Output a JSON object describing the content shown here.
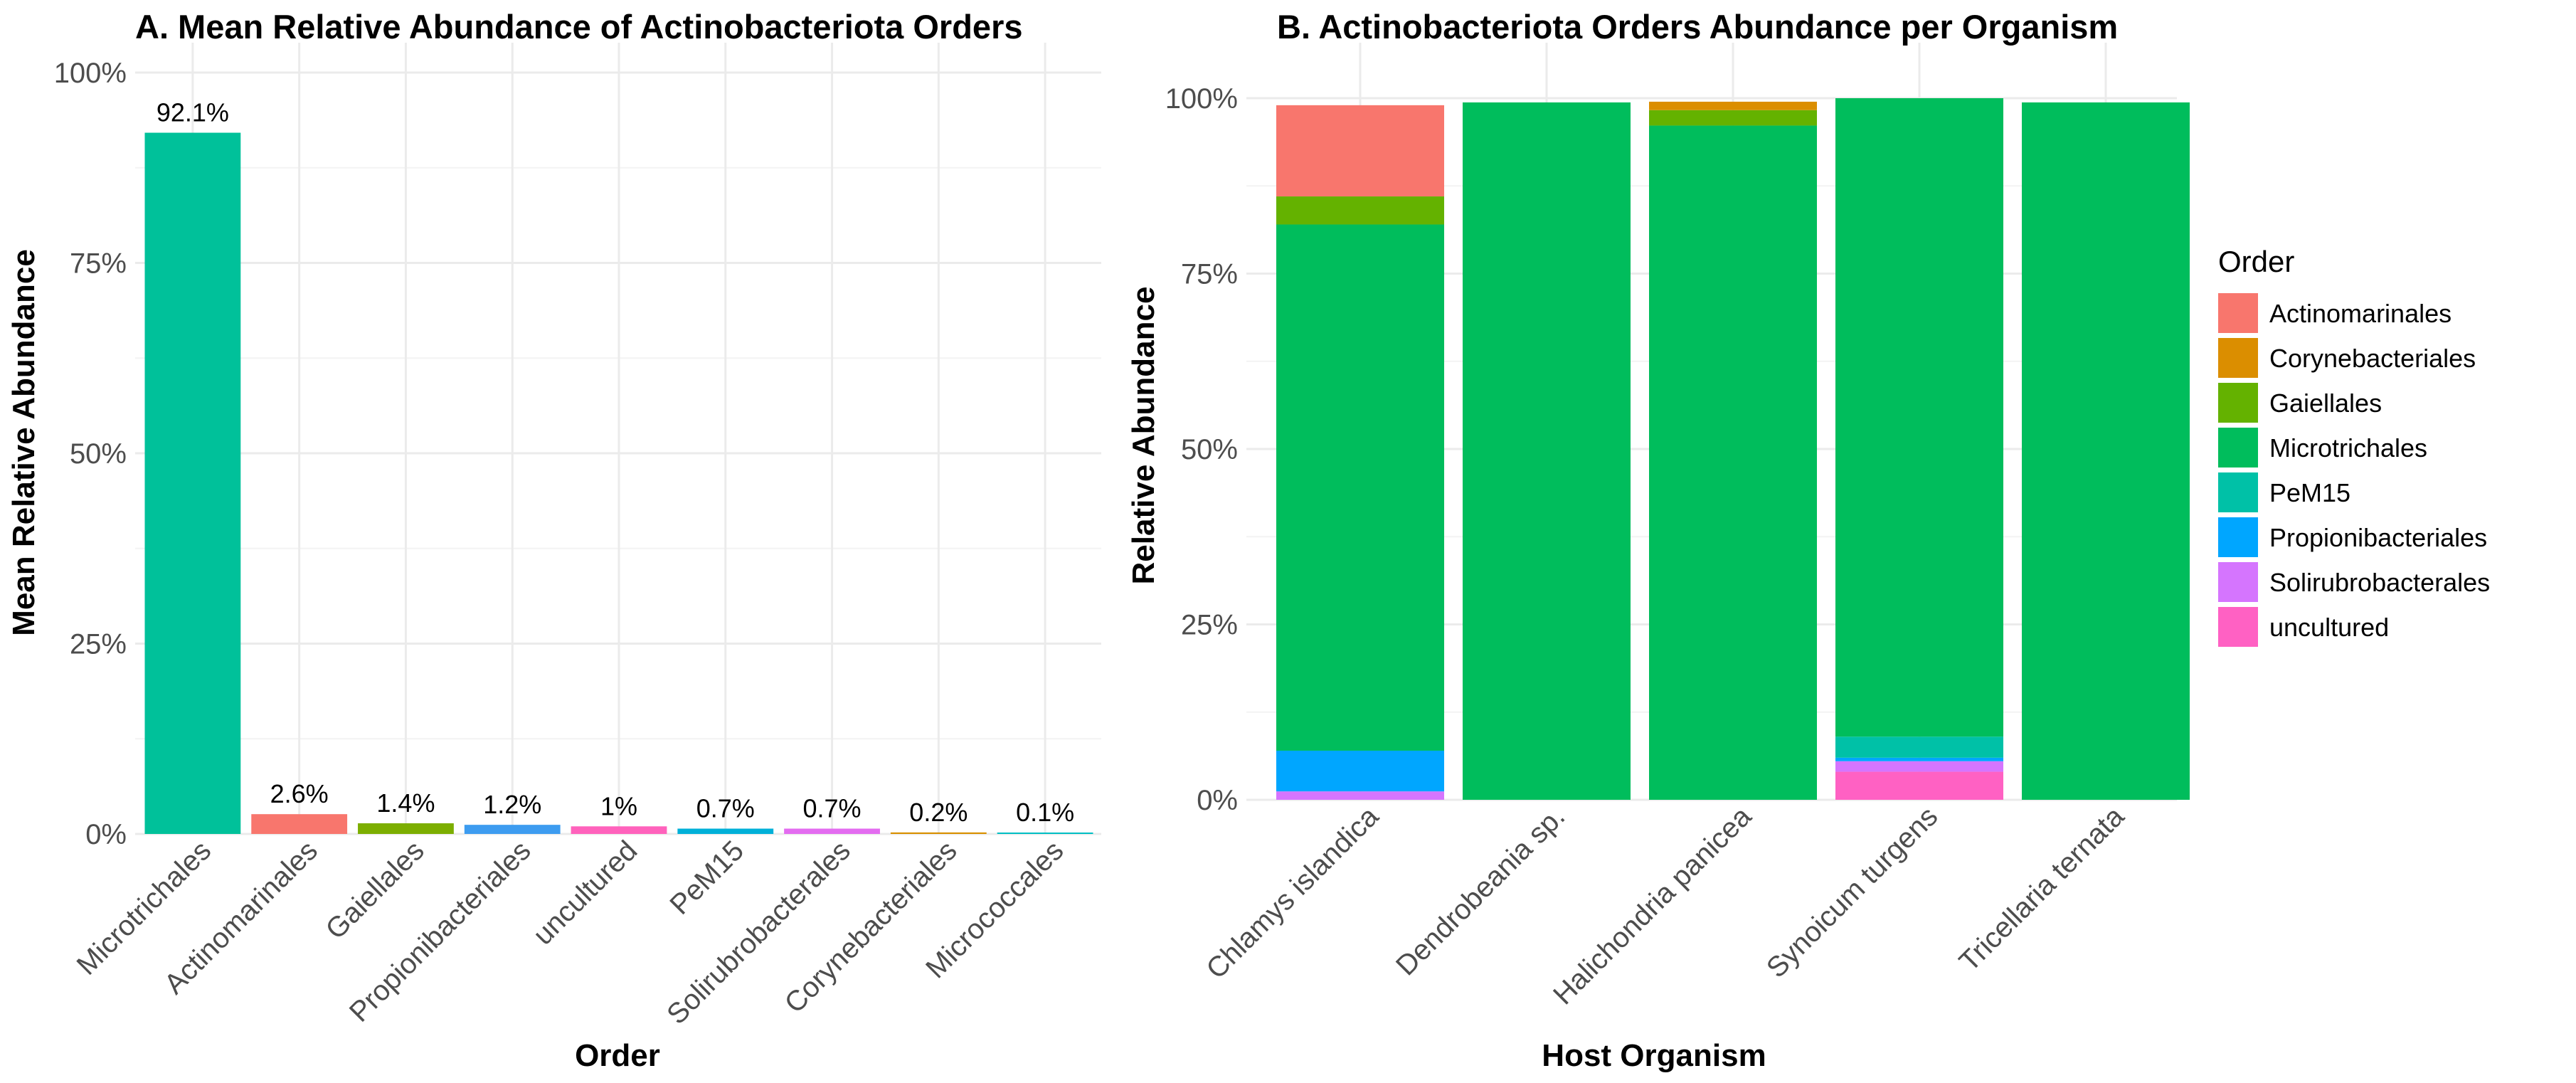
{
  "chart_data": [
    {
      "type": "bar",
      "title": "A. Mean Relative Abundance of Actinobacteriota Orders",
      "xlabel": "Order",
      "ylabel": "Mean Relative Abundance",
      "ylim": [
        0,
        100
      ],
      "y_ticks": [
        "0%",
        "25%",
        "50%",
        "75%",
        "100%"
      ],
      "categories": [
        "Microtrichales",
        "Actinomarinales",
        "Gaiellales",
        "Propionibacteriales",
        "uncultured",
        "PeM15",
        "Solirubrobacterales",
        "Corynebacteriales",
        "Micrococcales"
      ],
      "values": [
        92.1,
        2.6,
        1.4,
        1.2,
        1.0,
        0.7,
        0.7,
        0.2,
        0.1
      ],
      "data_labels": [
        "92.1%",
        "2.6%",
        "1.4%",
        "1.2%",
        "1%",
        "0.7%",
        "0.7%",
        "0.2%",
        "0.1%"
      ],
      "colors": [
        "#00C19A",
        "#F8766D",
        "#7CAE00",
        "#3D9CF0",
        "#FF62BC",
        "#00B0D8",
        "#E36CF0",
        "#D89000",
        "#00BFC4"
      ]
    },
    {
      "type": "bar",
      "stacked": true,
      "title": "B. Actinobacteriota Orders Abundance per Organism",
      "xlabel": "Host Organism",
      "ylabel": "Relative Abundance",
      "ylim": [
        0,
        100
      ],
      "y_ticks": [
        "0%",
        "25%",
        "50%",
        "75%",
        "100%"
      ],
      "categories": [
        "Chlamys islandica",
        "Dendrobeania sp.",
        "Halichondria panicea",
        "Synoicum turgens",
        "Tricellaria ternata"
      ],
      "legend_title": "Order",
      "legend_position": "right",
      "series": [
        {
          "name": "Actinomarinales",
          "color": "#F8766D",
          "values": [
            13.0,
            0,
            0,
            0,
            0
          ]
        },
        {
          "name": "Corynebacteriales",
          "color": "#DB8E00",
          "values": [
            0,
            0,
            1.2,
            0,
            0
          ]
        },
        {
          "name": "Gaiellales",
          "color": "#64B200",
          "values": [
            4.0,
            0,
            2.2,
            0,
            0
          ]
        },
        {
          "name": "Microtrichales",
          "color": "#00BD5C",
          "values": [
            75.0,
            99.4,
            96.1,
            91.0,
            99.4
          ]
        },
        {
          "name": "PeM15",
          "color": "#00C1A7",
          "values": [
            0,
            0,
            0,
            3.0,
            0
          ]
        },
        {
          "name": "Propionibacteriales",
          "color": "#00A6FF",
          "values": [
            5.8,
            0,
            0,
            0.5,
            0
          ]
        },
        {
          "name": "Solirubrobacterales",
          "color": "#D575FE",
          "values": [
            1.2,
            0,
            0,
            1.5,
            0
          ]
        },
        {
          "name": "uncultured",
          "color": "#FF61C3",
          "values": [
            0,
            0,
            0,
            4.0,
            0
          ]
        }
      ]
    }
  ]
}
